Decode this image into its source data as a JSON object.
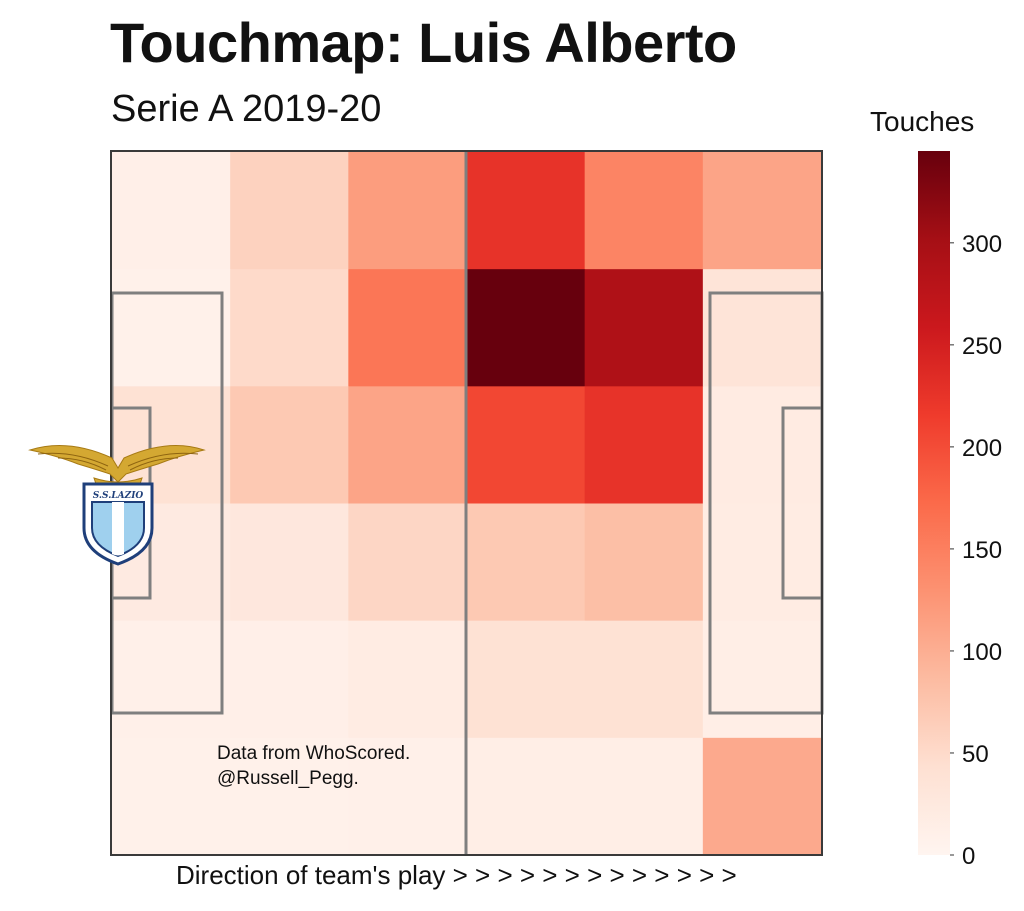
{
  "title": "Touchmap: Luis Alberto",
  "subtitle": "Serie A 2019-20",
  "credit": [
    "Data from WhoScored.",
    "@Russell_Pegg."
  ],
  "logo_text": "S.S.LAZIO",
  "chart_data": {
    "type": "heatmap",
    "title": "Touchmap: Luis Alberto",
    "subtitle": "Serie A 2019-20",
    "xlabel": "Direction of team's play > > > > > > > > > > > > >",
    "colorbar_label": "Touches",
    "colorbar_range": [
      0,
      345
    ],
    "colorbar_ticks": [
      0,
      50,
      100,
      150,
      200,
      250,
      300
    ],
    "colormap": "Reds",
    "grid_columns": 6,
    "grid_rows": 6,
    "values": [
      [
        12,
        60,
        118,
        225,
        145,
        110
      ],
      [
        8,
        50,
        160,
        345,
        290,
        35
      ],
      [
        40,
        70,
        110,
        205,
        225,
        20
      ],
      [
        22,
        28,
        55,
        70,
        82,
        18
      ],
      [
        10,
        12,
        18,
        40,
        40,
        14
      ],
      [
        8,
        8,
        10,
        15,
        15,
        105
      ]
    ]
  }
}
